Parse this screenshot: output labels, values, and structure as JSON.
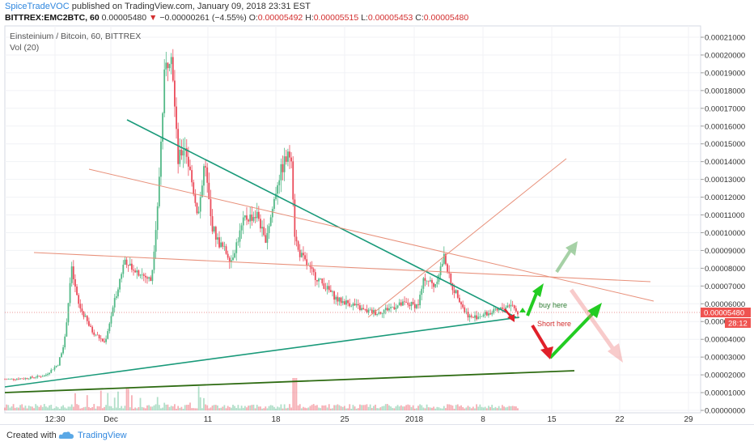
{
  "header": {
    "author": "SpiceTradeVOC",
    "published": " published on TradingView.com, January 09, 2018 23:31 EST",
    "symbol": "BITTREX:EMC2BTC, 60",
    "last": "0.00005480",
    "change": "−0.00000261 (−4.55%)",
    "o_label": "O:",
    "o_value": "0.00005492",
    "h_label": "H:",
    "h_value": "0.00005515",
    "l_label": "L:",
    "l_value": "0.00005453",
    "c_label": "C:",
    "c_value": "0.00005480"
  },
  "legend": {
    "title": "Einsteinium / Bitcoin, 60, BITTREX",
    "volume": "Vol (20)"
  },
  "price_tag": {
    "value": "0.00005480",
    "countdown": "28:12"
  },
  "annotations": {
    "buy": "buy here",
    "short": "Short here"
  },
  "footer": {
    "created": "Created with",
    "brand": "TradingView"
  },
  "colors": {
    "up": "#53b987",
    "down": "#eb4d5c",
    "teal_line": "#1a9a7a",
    "salmon_line": "#e8907a",
    "dark_green": "#2e6b12",
    "arrow_green": "#22cc22",
    "arrow_red": "#e0202a",
    "price_line": "#e57373"
  },
  "chart_data": {
    "type": "candlestick",
    "y_axis": {
      "min": 0.0,
      "max": 0.00021,
      "ticks": [
        "0.00021000",
        "0.00020000",
        "0.00019000",
        "0.00018000",
        "0.00017000",
        "0.00016000",
        "0.00015000",
        "0.00014000",
        "0.00013000",
        "0.00012000",
        "0.00011000",
        "0.00010000",
        "0.00009000",
        "0.00008000",
        "0.00007000",
        "0.00006000",
        "0.00005000",
        "0.00004000",
        "0.00003000",
        "0.00002000",
        "0.00001000",
        "0.00000000"
      ]
    },
    "x_axis": {
      "ticks": [
        "12:30",
        "Dec",
        "11",
        "18",
        "25",
        "2018",
        "8",
        "15",
        "22",
        "29"
      ]
    },
    "price_path": [
      [
        0.0,
        1.75e-05
      ],
      [
        0.03,
        1.8e-05
      ],
      [
        0.06,
        1.95e-05
      ],
      [
        0.08,
        2.6e-05
      ],
      [
        0.09,
        4e-05
      ],
      [
        0.1,
        8e-05
      ],
      [
        0.11,
        6e-05
      ],
      [
        0.13,
        4.5e-05
      ],
      [
        0.15,
        3.8e-05
      ],
      [
        0.17,
        7e-05
      ],
      [
        0.18,
        8.5e-05
      ],
      [
        0.2,
        7.8e-05
      ],
      [
        0.22,
        7.3e-05
      ],
      [
        0.23,
        0.00012
      ],
      [
        0.24,
        0.00019
      ],
      [
        0.25,
        0.000205
      ],
      [
        0.255,
        0.00017
      ],
      [
        0.26,
        0.00014
      ],
      [
        0.27,
        0.00015
      ],
      [
        0.28,
        0.00013
      ],
      [
        0.29,
        0.00011
      ],
      [
        0.3,
        0.00014
      ],
      [
        0.31,
        0.000105
      ],
      [
        0.32,
        9.5e-05
      ],
      [
        0.33,
        9e-05
      ],
      [
        0.34,
        8.5e-05
      ],
      [
        0.36,
        0.000108
      ],
      [
        0.38,
        0.00011
      ],
      [
        0.39,
        9.5e-05
      ],
      [
        0.4,
        0.00011
      ],
      [
        0.41,
        0.00013
      ],
      [
        0.42,
        0.00014
      ],
      [
        0.43,
        0.000145
      ],
      [
        0.435,
        0.0001
      ],
      [
        0.44,
        9e-05
      ],
      [
        0.46,
        7.8e-05
      ],
      [
        0.48,
        7e-05
      ],
      [
        0.5,
        6.2e-05
      ],
      [
        0.52,
        6e-05
      ],
      [
        0.54,
        5.6e-05
      ],
      [
        0.56,
        5.5e-05
      ],
      [
        0.58,
        5.8e-05
      ],
      [
        0.6,
        6e-05
      ],
      [
        0.62,
        5.9e-05
      ],
      [
        0.63,
        7.5e-05
      ],
      [
        0.645,
        7e-05
      ],
      [
        0.66,
        8.7e-05
      ],
      [
        0.67,
        7e-05
      ],
      [
        0.68,
        6.5e-05
      ],
      [
        0.69,
        5.6e-05
      ],
      [
        0.7,
        5.2e-05
      ],
      [
        0.72,
        5.4e-05
      ],
      [
        0.74,
        5.6e-05
      ],
      [
        0.76,
        6e-05
      ],
      [
        0.77,
        5.48e-05
      ]
    ],
    "volume_scale_max": 1
  }
}
